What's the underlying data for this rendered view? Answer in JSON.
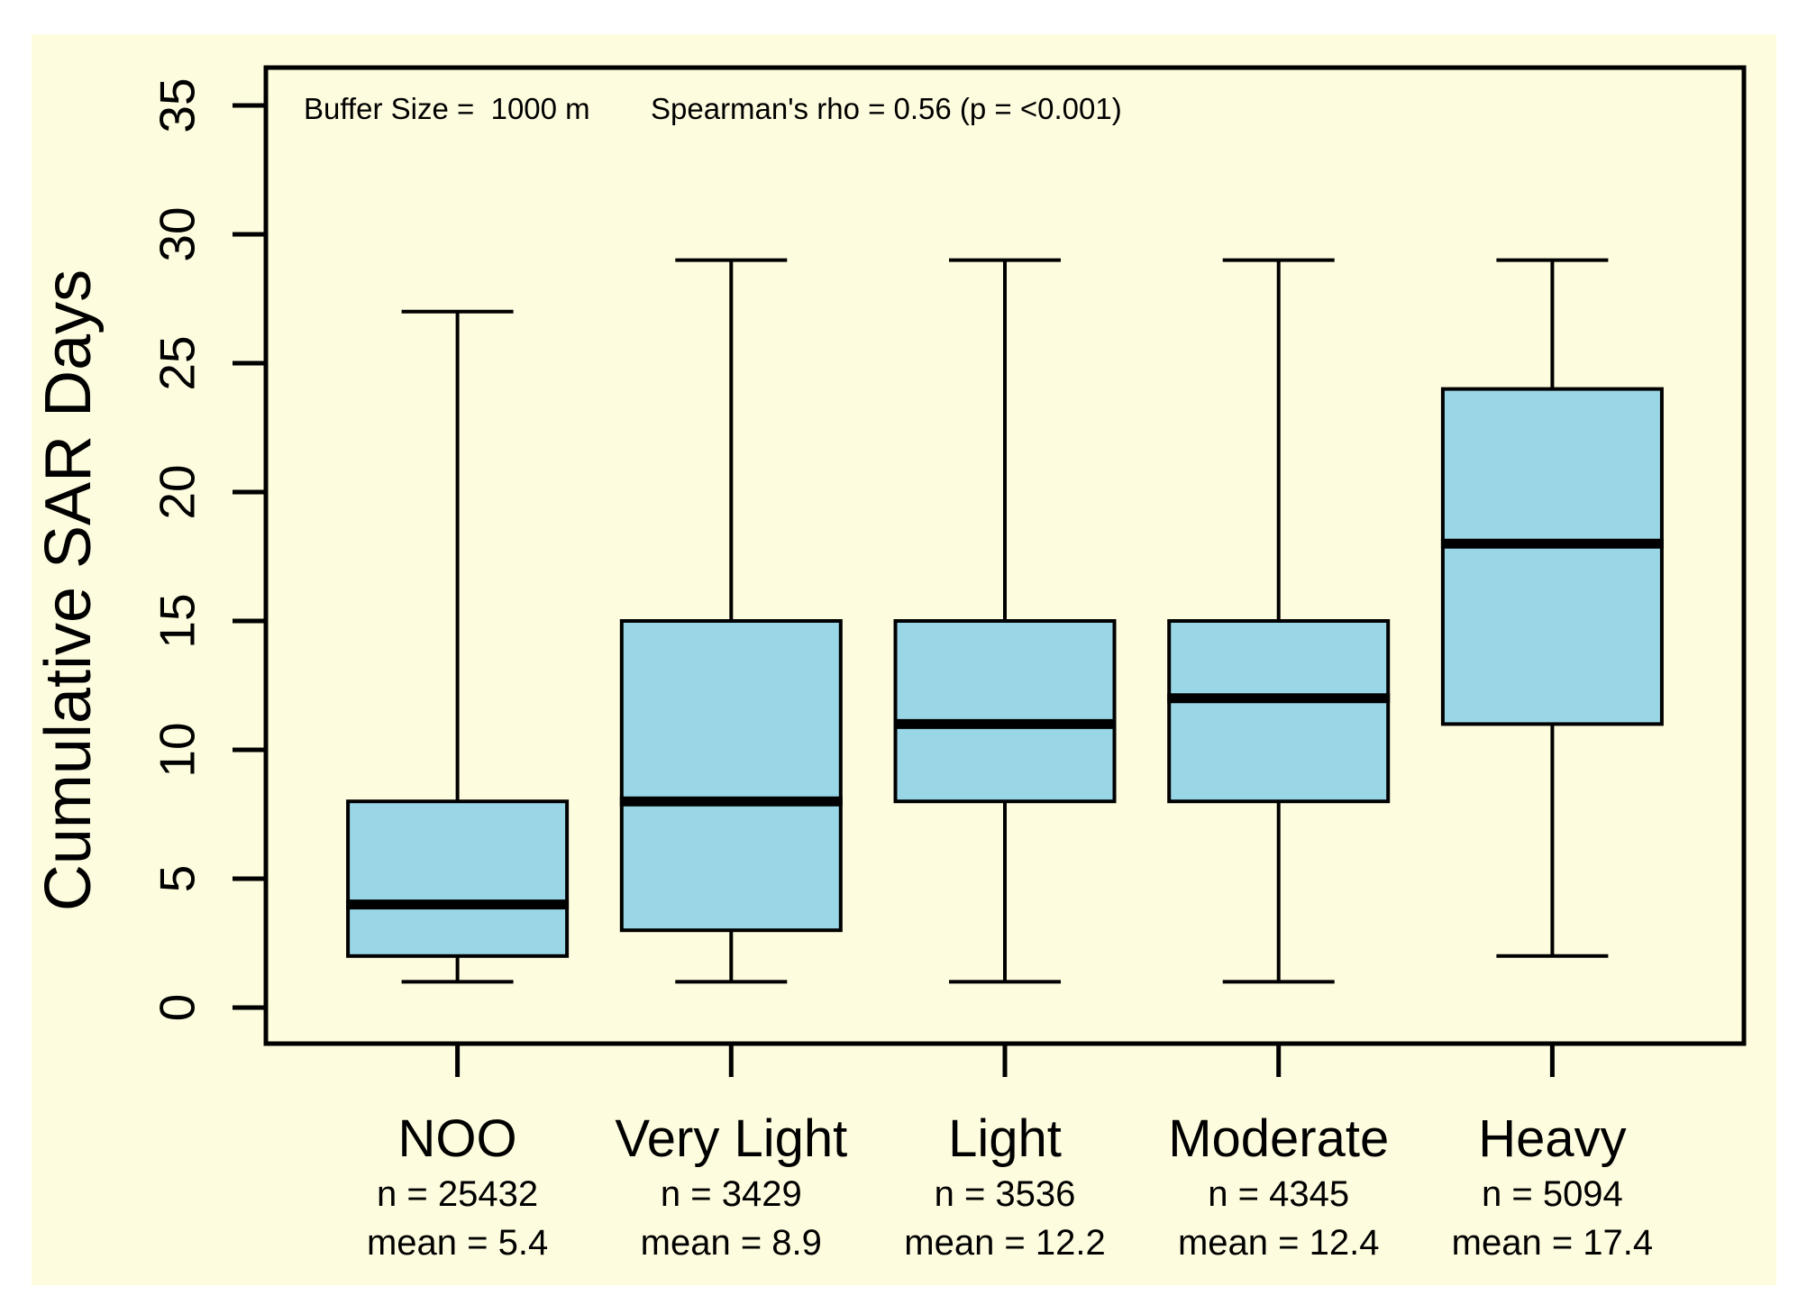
{
  "chart_data": {
    "type": "boxplot",
    "title": "",
    "xlabel": "",
    "ylabel": "Cumulative SAR Days",
    "ylim": [
      0,
      35
    ],
    "y_ticks": [
      0,
      5,
      10,
      15,
      20,
      25,
      30,
      35
    ],
    "grid": false,
    "legend": false,
    "annotations": {
      "buffer": "Buffer Size =  1000 m",
      "spearman": "Spearman's rho = 0.56 (p = <0.001)"
    },
    "stats_prefixes": {
      "n": "n = ",
      "mean": "mean = "
    },
    "categories": [
      "NOO",
      "Very Light",
      "Light",
      "Moderate",
      "Heavy"
    ],
    "groups": [
      {
        "label": "NOO",
        "n": 25432,
        "mean": 5.4,
        "whisker_low": 1,
        "q1": 2,
        "median": 4,
        "q3": 8,
        "whisker_high": 27
      },
      {
        "label": "Very Light",
        "n": 3429,
        "mean": 8.9,
        "whisker_low": 1,
        "q1": 3,
        "median": 8,
        "q3": 15,
        "whisker_high": 29
      },
      {
        "label": "Light",
        "n": 3536,
        "mean": 12.2,
        "whisker_low": 1,
        "q1": 8,
        "median": 11,
        "q3": 15,
        "whisker_high": 29
      },
      {
        "label": "Moderate",
        "n": 4345,
        "mean": 12.4,
        "whisker_low": 1,
        "q1": 8,
        "median": 12,
        "q3": 15,
        "whisker_high": 29
      },
      {
        "label": "Heavy",
        "n": 5094,
        "mean": 17.4,
        "whisker_low": 2,
        "q1": 11,
        "median": 18,
        "q3": 24,
        "whisker_high": 29
      }
    ],
    "colors": {
      "page_background": "#FFFFFF",
      "panel_background": "#FEFCDE",
      "box_fill": "#9AD7E6",
      "line": "#000000"
    }
  }
}
